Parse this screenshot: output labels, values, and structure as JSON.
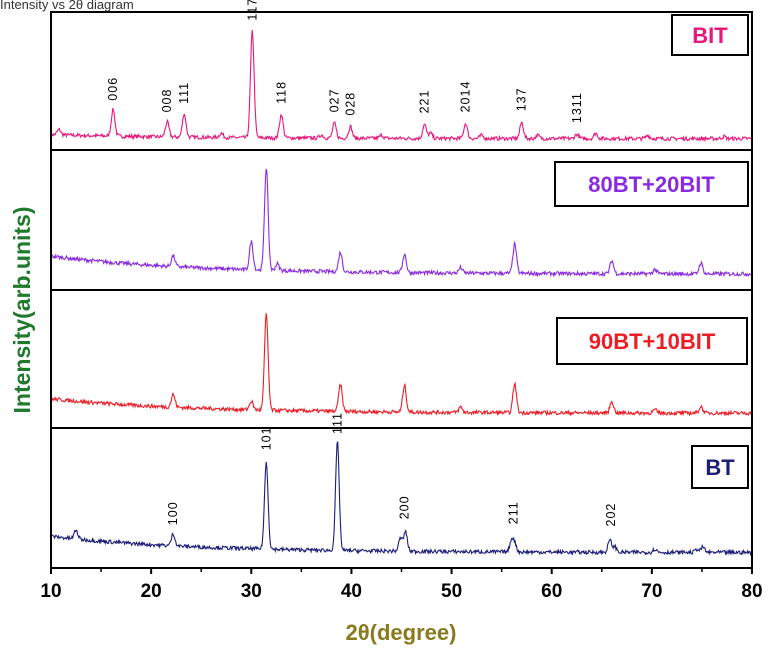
{
  "caption": "Intensity vs 2θ diagram",
  "chart_data": {
    "type": "line",
    "xlabel": "2θ(degree)",
    "ylabel": "Intensity(arb.units)",
    "xlim": [
      10,
      80
    ],
    "xticks": [
      10,
      20,
      30,
      40,
      50,
      60,
      70,
      80
    ],
    "panels": [
      {
        "name": "BIT",
        "color": "#e8177a",
        "baseline": 0.05,
        "peaks": [
          [
            10.8,
            0.05
          ],
          [
            16.2,
            0.25
          ],
          [
            21.6,
            0.14
          ],
          [
            23.3,
            0.22
          ],
          [
            27.0,
            0.04
          ],
          [
            30.1,
            1.0
          ],
          [
            33.0,
            0.22
          ],
          [
            37.0,
            0.03
          ],
          [
            38.3,
            0.14
          ],
          [
            39.9,
            0.11
          ],
          [
            43.0,
            0.03
          ],
          [
            47.3,
            0.13
          ],
          [
            47.9,
            0.05
          ],
          [
            51.4,
            0.14
          ],
          [
            53.0,
            0.03
          ],
          [
            57.0,
            0.15
          ],
          [
            58.6,
            0.03
          ],
          [
            62.5,
            0.04
          ],
          [
            64.4,
            0.05
          ],
          [
            69.6,
            0.03
          ],
          [
            77.2,
            0.02
          ]
        ],
        "labels": [
          [
            16.2,
            "006"
          ],
          [
            21.6,
            "008"
          ],
          [
            23.3,
            "111"
          ],
          [
            30.1,
            "117"
          ],
          [
            33.0,
            "118"
          ],
          [
            38.3,
            "027"
          ],
          [
            39.9,
            "028"
          ],
          [
            47.3,
            "221"
          ],
          [
            51.4,
            "2014"
          ],
          [
            57.0,
            "137"
          ],
          [
            62.5,
            "1311"
          ]
        ]
      },
      {
        "name": "80BT+20BIT",
        "color": "#8a2be2",
        "baseline": 0.22,
        "peaks": [
          [
            22.2,
            0.1
          ],
          [
            30.0,
            0.26
          ],
          [
            31.5,
            0.95
          ],
          [
            32.6,
            0.06
          ],
          [
            38.9,
            0.18
          ],
          [
            45.3,
            0.17
          ],
          [
            50.9,
            0.05
          ],
          [
            56.3,
            0.27
          ],
          [
            66.0,
            0.12
          ],
          [
            70.3,
            0.04
          ],
          [
            74.9,
            0.1
          ]
        ],
        "labels": []
      },
      {
        "name": "90BT+10BIT",
        "color": "#ee1c25",
        "baseline": 0.18,
        "peaks": [
          [
            22.2,
            0.12
          ],
          [
            30.0,
            0.08
          ],
          [
            31.5,
            0.9
          ],
          [
            38.9,
            0.25
          ],
          [
            45.3,
            0.25
          ],
          [
            50.9,
            0.05
          ],
          [
            56.3,
            0.27
          ],
          [
            66.0,
            0.11
          ],
          [
            70.3,
            0.03
          ],
          [
            74.9,
            0.06
          ]
        ],
        "labels": []
      },
      {
        "name": "BT",
        "color": "#1b1f7a",
        "baseline": 0.2,
        "peaks": [
          [
            12.5,
            0.08
          ],
          [
            22.2,
            0.11
          ],
          [
            31.5,
            0.8
          ],
          [
            38.6,
            1.0
          ],
          [
            44.9,
            0.12
          ],
          [
            45.4,
            0.18
          ],
          [
            56.0,
            0.11
          ],
          [
            56.3,
            0.07
          ],
          [
            65.8,
            0.11
          ],
          [
            66.3,
            0.05
          ],
          [
            70.3,
            0.03
          ],
          [
            74.5,
            0.03
          ],
          [
            75.1,
            0.05
          ]
        ],
        "labels": [
          [
            22.2,
            "100"
          ],
          [
            31.5,
            "101"
          ],
          [
            38.6,
            "111"
          ],
          [
            45.3,
            "200"
          ],
          [
            56.2,
            "211"
          ],
          [
            65.9,
            "202"
          ]
        ]
      }
    ]
  }
}
